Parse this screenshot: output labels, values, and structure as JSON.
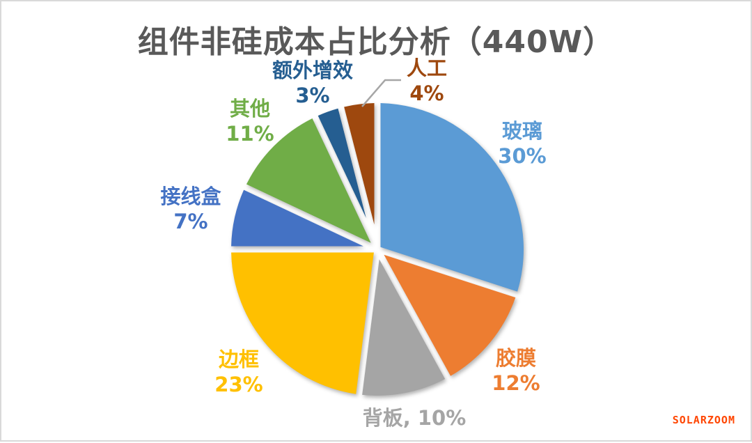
{
  "page": {
    "background": "#FFFFFF",
    "border_color": "#D9D9D9"
  },
  "chart_data": {
    "type": "pie",
    "title": "组件非硅成本占比分析（440W）",
    "title_color": "#595959",
    "direction": "clockwise",
    "start_angle_deg": 0,
    "legend": "none",
    "labels_style": "category name + percent shown outside each slice, text colored to match slice",
    "slices": [
      {
        "id": "glass",
        "label": "玻璃",
        "value": 30,
        "percent": "30%",
        "color": "#5B9BD5"
      },
      {
        "id": "eva-film",
        "label": "胶膜",
        "value": 12,
        "percent": "12%",
        "color": "#ED7D31"
      },
      {
        "id": "backsheet",
        "label": "背板",
        "value": 10,
        "percent": "10%",
        "color": "#A5A5A5",
        "single_line_label": "背板, 10%"
      },
      {
        "id": "frame",
        "label": "边框",
        "value": 23,
        "percent": "23%",
        "color": "#FFC000"
      },
      {
        "id": "junction-box",
        "label": "接线盒",
        "value": 7,
        "percent": "7%",
        "color": "#4472C4"
      },
      {
        "id": "others",
        "label": "其他",
        "value": 11,
        "percent": "11%",
        "color": "#70AD47"
      },
      {
        "id": "extra-gain",
        "label": "额外增效",
        "value": 3,
        "percent": "3%",
        "color": "#255E91"
      },
      {
        "id": "labor",
        "label": "人工",
        "value": 4,
        "percent": "4%",
        "color": "#9E480E"
      }
    ],
    "leader_line": {
      "for": "labor",
      "color": "#A6A6A6"
    }
  },
  "watermark": {
    "text": "SOLARZOOM",
    "color": "#FF4500"
  }
}
